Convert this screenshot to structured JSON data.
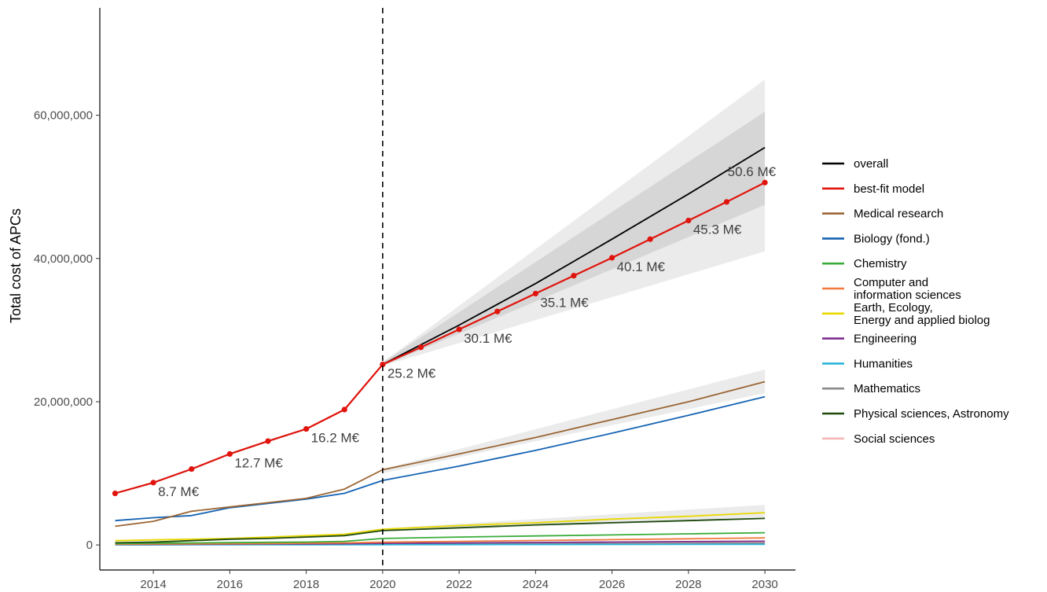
{
  "chart_data": {
    "type": "line",
    "title": "",
    "xlabel": "",
    "ylabel": "Total cost of APCs",
    "xlim": [
      2012.6,
      2030.8
    ],
    "ylim": [
      -3500000,
      75000000
    ],
    "x_ticks": [
      2014,
      2016,
      2018,
      2020,
      2022,
      2024,
      2026,
      2028,
      2030
    ],
    "x_tick_labels": [
      "2014",
      "2016",
      "2018",
      "2020",
      "2022",
      "2024",
      "2026",
      "2028",
      "2030"
    ],
    "y_ticks": [
      0,
      20000000,
      40000000,
      60000000
    ],
    "y_tick_labels": [
      "0",
      "20,000,000",
      "40,000,000",
      "60,000,000"
    ],
    "vline_x": 2020,
    "grid": false,
    "legend_position": "right",
    "bands": [
      {
        "x": [
          2020,
          2030
        ],
        "lower": [
          25000000,
          41000000
        ],
        "upper": [
          25500000,
          65000000
        ],
        "color": "#ebebeb"
      },
      {
        "x": [
          2020,
          2030
        ],
        "lower": [
          25000000,
          47500000
        ],
        "upper": [
          25500000,
          60500000
        ],
        "color": "#d6d6d6"
      },
      {
        "x": [
          2020,
          2030
        ],
        "lower": [
          10000000,
          21200000
        ],
        "upper": [
          10600000,
          24500000
        ],
        "color": "#ebebeb"
      },
      {
        "x": [
          2020,
          2030
        ],
        "lower": [
          1900000,
          3600000
        ],
        "upper": [
          2300000,
          5600000
        ],
        "color": "#ebebeb"
      }
    ],
    "series": [
      {
        "name": "Social sciences",
        "color": "#f4b6b6",
        "x": [
          2013,
          2014,
          2015,
          2016,
          2017,
          2018,
          2019,
          2020,
          2022,
          2024,
          2026,
          2028,
          2030
        ],
        "values": [
          60000,
          70000,
          80000,
          90000,
          100000,
          120000,
          140000,
          170000,
          220000,
          270000,
          320000,
          370000,
          420000
        ]
      },
      {
        "name": "Mathematics",
        "color": "#8a8a8a",
        "x": [
          2013,
          2014,
          2015,
          2016,
          2017,
          2018,
          2019,
          2020,
          2022,
          2024,
          2026,
          2028,
          2030
        ],
        "values": [
          40000,
          40000,
          50000,
          50000,
          60000,
          70000,
          80000,
          100000,
          120000,
          150000,
          180000,
          210000,
          240000
        ]
      },
      {
        "name": "Humanities",
        "color": "#29b5d8",
        "x": [
          2013,
          2014,
          2015,
          2016,
          2017,
          2018,
          2019,
          2020,
          2022,
          2024,
          2026,
          2028,
          2030
        ],
        "values": [
          10000,
          10000,
          20000,
          20000,
          20000,
          30000,
          30000,
          40000,
          50000,
          60000,
          70000,
          80000,
          90000
        ]
      },
      {
        "name": "Engineering",
        "color": "#7b2d8e",
        "x": [
          2013,
          2014,
          2015,
          2016,
          2017,
          2018,
          2019,
          2020,
          2022,
          2024,
          2026,
          2028,
          2030
        ],
        "values": [
          80000,
          90000,
          100000,
          110000,
          130000,
          150000,
          170000,
          220000,
          280000,
          340000,
          400000,
          460000,
          520000
        ]
      },
      {
        "name": "Computer and\ninformation sciences",
        "color": "#f07a3c",
        "x": [
          2013,
          2014,
          2015,
          2016,
          2017,
          2018,
          2019,
          2020,
          2022,
          2024,
          2026,
          2028,
          2030
        ],
        "values": [
          100000,
          120000,
          140000,
          170000,
          200000,
          240000,
          290000,
          380000,
          500000,
          620000,
          740000,
          860000,
          980000
        ]
      },
      {
        "name": "Chemistry",
        "color": "#3aac3a",
        "x": [
          2013,
          2014,
          2015,
          2016,
          2017,
          2018,
          2019,
          2020,
          2022,
          2024,
          2026,
          2028,
          2030
        ],
        "values": [
          200000,
          250000,
          280000,
          320000,
          360000,
          400000,
          500000,
          900000,
          1100000,
          1250000,
          1400000,
          1550000,
          1700000
        ]
      },
      {
        "name": "Earth, Ecology,\nEnergy and applied biolog",
        "color": "#e8d800",
        "x": [
          2013,
          2014,
          2015,
          2016,
          2017,
          2018,
          2019,
          2020,
          2022,
          2024,
          2026,
          2028,
          2030
        ],
        "values": [
          600000,
          700000,
          800000,
          900000,
          1100000,
          1300000,
          1500000,
          2200000,
          2700000,
          3100000,
          3600000,
          4000000,
          4500000
        ]
      },
      {
        "name": "Physical sciences, Astronomy",
        "color": "#1e4a0e",
        "x": [
          2013,
          2014,
          2015,
          2016,
          2017,
          2018,
          2019,
          2020,
          2022,
          2024,
          2026,
          2028,
          2030
        ],
        "values": [
          300000,
          400000,
          600000,
          800000,
          900000,
          1100000,
          1300000,
          2000000,
          2400000,
          2800000,
          3100000,
          3400000,
          3700000
        ]
      },
      {
        "name": "Biology (fond.)",
        "color": "#1463b3",
        "x": [
          2013,
          2014,
          2015,
          2016,
          2017,
          2018,
          2019,
          2020,
          2022,
          2024,
          2026,
          2028,
          2030
        ],
        "values": [
          3400000,
          3800000,
          4100000,
          5200000,
          5800000,
          6400000,
          7200000,
          9000000,
          11000000,
          13200000,
          15600000,
          18100000,
          20700000
        ]
      },
      {
        "name": "Medical research",
        "color": "#9a6534",
        "x": [
          2013,
          2014,
          2015,
          2016,
          2017,
          2018,
          2019,
          2020,
          2022,
          2024,
          2026,
          2028,
          2030
        ],
        "values": [
          2600000,
          3300000,
          4700000,
          5300000,
          5900000,
          6500000,
          7800000,
          10500000,
          12700000,
          15000000,
          17500000,
          20000000,
          22800000
        ]
      },
      {
        "name": "overall",
        "color": "#000000",
        "x": [
          2013,
          2014,
          2015,
          2016,
          2017,
          2018,
          2019,
          2020,
          2022,
          2024,
          2026,
          2028,
          2030
        ],
        "values": [
          7200000,
          8700000,
          10600000,
          12700000,
          14500000,
          16200000,
          18900000,
          25200000,
          30700000,
          36500000,
          42700000,
          49000000,
          55500000
        ]
      },
      {
        "name": "best-fit model",
        "color": "#e0140c",
        "markers": true,
        "x": [
          2013,
          2014,
          2015,
          2016,
          2017,
          2018,
          2019,
          2020,
          2021,
          2022,
          2023,
          2024,
          2025,
          2026,
          2027,
          2028,
          2029,
          2030
        ],
        "values": [
          7200000,
          8700000,
          10600000,
          12700000,
          14500000,
          16200000,
          18900000,
          25200000,
          27600000,
          30100000,
          32600000,
          35100000,
          37600000,
          40100000,
          42700000,
          45300000,
          47900000,
          50600000
        ]
      }
    ],
    "legend": [
      "overall",
      "best-fit model",
      "Medical research",
      "Biology (fond.)",
      "Chemistry",
      "Computer and\ninformation sciences",
      "Earth, Ecology,\nEnergy and applied biolog",
      "Engineering",
      "Humanities",
      "Mathematics",
      "Physical sciences, Astronomy",
      "Social sciences"
    ],
    "annotations": [
      {
        "x": 2014,
        "y": 8700000,
        "text": "8.7 M€"
      },
      {
        "x": 2016,
        "y": 12700000,
        "text": "12.7 M€"
      },
      {
        "x": 2018,
        "y": 16200000,
        "text": "16.2 M€"
      },
      {
        "x": 2020,
        "y": 25200000,
        "text": "25.2 M€"
      },
      {
        "x": 2022,
        "y": 30100000,
        "text": "30.1 M€"
      },
      {
        "x": 2024,
        "y": 35100000,
        "text": "35.1 M€"
      },
      {
        "x": 2026,
        "y": 40100000,
        "text": "40.1 M€"
      },
      {
        "x": 2028,
        "y": 45300000,
        "text": "45.3 M€"
      },
      {
        "x": 2030,
        "y": 50600000,
        "text": "50.6 M€"
      }
    ]
  }
}
